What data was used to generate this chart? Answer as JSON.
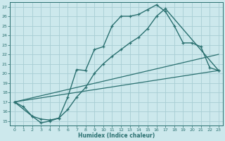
{
  "xlabel": "Humidex (Indice chaleur)",
  "bg_color": "#cce8ec",
  "grid_color": "#a8cdd3",
  "line_color": "#2a7070",
  "xlim": [
    -0.5,
    23.5
  ],
  "ylim": [
    14.5,
    27.5
  ],
  "xticks": [
    0,
    1,
    2,
    3,
    4,
    5,
    6,
    7,
    8,
    9,
    10,
    11,
    12,
    13,
    14,
    15,
    16,
    17,
    18,
    19,
    20,
    21,
    22,
    23
  ],
  "yticks": [
    15,
    16,
    17,
    18,
    19,
    20,
    21,
    22,
    23,
    24,
    25,
    26,
    27
  ],
  "line1_x": [
    0,
    1,
    2,
    3,
    4,
    5,
    6,
    7,
    8,
    9,
    10,
    11,
    12,
    13,
    14,
    15,
    16,
    17,
    18,
    19,
    20,
    21,
    22,
    23
  ],
  "line1_y": [
    17.0,
    16.5,
    15.5,
    14.8,
    15.0,
    15.3,
    17.5,
    20.4,
    20.3,
    22.5,
    22.8,
    25.0,
    26.0,
    26.0,
    26.2,
    26.7,
    27.2,
    26.5,
    25.0,
    23.2,
    23.2,
    22.8,
    20.6,
    20.3
  ],
  "line2_x": [
    0,
    2,
    3,
    4,
    5,
    6,
    7,
    8,
    9,
    10,
    11,
    12,
    13,
    14,
    15,
    16,
    17,
    23
  ],
  "line2_y": [
    17.0,
    15.5,
    15.2,
    15.1,
    15.3,
    16.2,
    17.5,
    18.5,
    20.0,
    21.0,
    21.8,
    22.5,
    23.2,
    23.8,
    24.7,
    26.0,
    26.8,
    20.3
  ],
  "line3_x": [
    0,
    23
  ],
  "line3_y": [
    17.0,
    20.3
  ],
  "line4_x": [
    0,
    23
  ],
  "line4_y": [
    17.0,
    22.0
  ]
}
